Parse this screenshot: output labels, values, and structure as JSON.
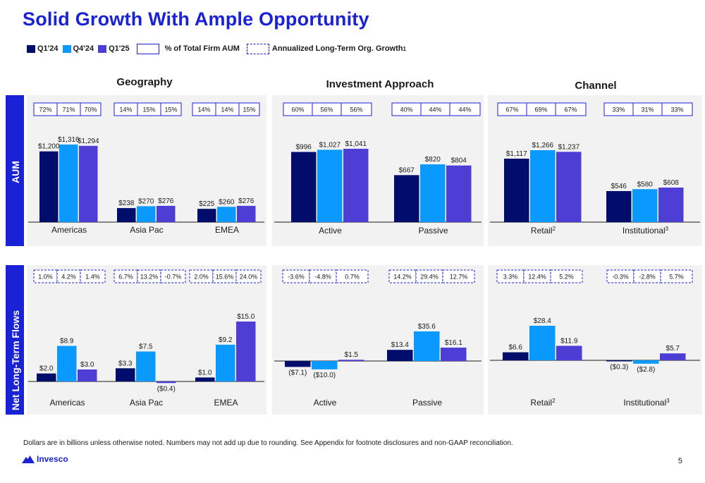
{
  "title": "Solid Growth With Ample Opportunity",
  "legend": {
    "series": [
      {
        "label": "Q1'24",
        "color": "#000d6b"
      },
      {
        "label": "Q4'24",
        "color": "#0a9aff"
      },
      {
        "label": "Q1'25",
        "color": "#4d3fd6"
      }
    ],
    "box_label": "% of Total Firm AUM",
    "dashed_label": "Annualized Long-Term Org. Growth",
    "dashed_sup": "1"
  },
  "column_titles": [
    "Geography",
    "Investment Approach",
    "Channel"
  ],
  "row_labels": [
    "AUM",
    "Net Long-Term Flows"
  ],
  "colors": {
    "q1_24": "#000d6b",
    "q4_24": "#0a9aff",
    "q1_25": "#4d3fd6",
    "accent": "#1a22d6",
    "panel": "#f2f2f2"
  },
  "chart_data": [
    {
      "type": "bar",
      "panel": "AUM - Geography",
      "categories": [
        "Americas",
        "Asia Pac",
        "EMEA"
      ],
      "series": [
        {
          "name": "Q1'24",
          "values": [
            1200,
            238,
            225
          ]
        },
        {
          "name": "Q4'24",
          "values": [
            1316,
            270,
            260
          ]
        },
        {
          "name": "Q1'25",
          "values": [
            1294,
            276,
            276
          ]
        }
      ],
      "data_labels": [
        [
          "$1,200",
          "$1,316",
          "$1,294"
        ],
        [
          "$238",
          "$270",
          "$276"
        ],
        [
          "$225",
          "$260",
          "$276"
        ]
      ],
      "box_values": [
        [
          "72%",
          "71%",
          "70%"
        ],
        [
          "14%",
          "15%",
          "15%"
        ],
        [
          "14%",
          "14%",
          "15%"
        ]
      ],
      "box_style": "solid"
    },
    {
      "type": "bar",
      "panel": "AUM - Investment Approach",
      "categories": [
        "Active",
        "Passive"
      ],
      "series": [
        {
          "name": "Q1'24",
          "values": [
            996,
            667
          ]
        },
        {
          "name": "Q4'24",
          "values": [
            1027,
            820
          ]
        },
        {
          "name": "Q1'25",
          "values": [
            1041,
            804
          ]
        }
      ],
      "data_labels": [
        [
          "$996",
          "$1,027",
          "$1,041"
        ],
        [
          "$667",
          "$820",
          "$804"
        ]
      ],
      "box_values": [
        [
          "60%",
          "56%",
          "56%"
        ],
        [
          "40%",
          "44%",
          "44%"
        ]
      ],
      "box_style": "solid"
    },
    {
      "type": "bar",
      "panel": "AUM - Channel",
      "categories": [
        "Retail",
        "Institutional"
      ],
      "category_sup": [
        "2",
        "3"
      ],
      "series": [
        {
          "name": "Q1'24",
          "values": [
            1117,
            546
          ]
        },
        {
          "name": "Q4'24",
          "values": [
            1266,
            580
          ]
        },
        {
          "name": "Q1'25",
          "values": [
            1237,
            608
          ]
        }
      ],
      "data_labels": [
        [
          "$1,117",
          "$1,266",
          "$1,237"
        ],
        [
          "$546",
          "$580",
          "$608"
        ]
      ],
      "box_values": [
        [
          "67%",
          "69%",
          "67%"
        ],
        [
          "33%",
          "31%",
          "33%"
        ]
      ],
      "box_style": "solid"
    },
    {
      "type": "bar",
      "panel": "Net Long-Term Flows - Geography",
      "categories": [
        "Americas",
        "Asia Pac",
        "EMEA"
      ],
      "series": [
        {
          "name": "Q1'24",
          "values": [
            2.0,
            3.3,
            1.0
          ]
        },
        {
          "name": "Q4'24",
          "values": [
            8.9,
            7.5,
            9.2
          ]
        },
        {
          "name": "Q1'25",
          "values": [
            3.0,
            -0.4,
            15.0
          ]
        }
      ],
      "data_labels": [
        [
          "$2.0",
          "$8.9",
          "$3.0"
        ],
        [
          "$3.3",
          "$7.5",
          "($0.4)"
        ],
        [
          "$1.0",
          "$9.2",
          "$15.0"
        ]
      ],
      "box_values": [
        [
          "1.0%",
          "4.2%",
          "1.4%"
        ],
        [
          "6.7%",
          "13.2%",
          "-0.7%"
        ],
        [
          "2.0%",
          "15.6%",
          "24.0%"
        ]
      ],
      "box_style": "dashed"
    },
    {
      "type": "bar",
      "panel": "Net Long-Term Flows - Investment Approach",
      "categories": [
        "Active",
        "Passive"
      ],
      "series": [
        {
          "name": "Q1'24",
          "values": [
            -7.1,
            13.4
          ]
        },
        {
          "name": "Q4'24",
          "values": [
            -10.0,
            35.6
          ]
        },
        {
          "name": "Q1'25",
          "values": [
            1.5,
            16.1
          ]
        }
      ],
      "data_labels": [
        [
          "($7.1)",
          "($10.0)",
          "$1.5"
        ],
        [
          "$13.4",
          "$35.6",
          "$16.1"
        ]
      ],
      "box_values": [
        [
          "-3.6%",
          "-4.8%",
          "0.7%"
        ],
        [
          "14.2%",
          "29.4%",
          "12.7%"
        ]
      ],
      "box_style": "dashed"
    },
    {
      "type": "bar",
      "panel": "Net Long-Term Flows - Channel",
      "categories": [
        "Retail",
        "Institutional"
      ],
      "category_sup": [
        "2",
        "3"
      ],
      "series": [
        {
          "name": "Q1'24",
          "values": [
            6.6,
            -0.3
          ]
        },
        {
          "name": "Q4'24",
          "values": [
            28.4,
            -2.8
          ]
        },
        {
          "name": "Q1'25",
          "values": [
            11.9,
            5.7
          ]
        }
      ],
      "data_labels": [
        [
          "$6.6",
          "$28.4",
          "$11.9"
        ],
        [
          "($0.3)",
          "($2.8)",
          "$5.7"
        ]
      ],
      "box_values": [
        [
          "3.3%",
          "12.4%",
          "5.2%"
        ],
        [
          "-0.3%",
          "-2.8%",
          "5.7%"
        ]
      ],
      "box_style": "dashed"
    }
  ],
  "footnote": "Dollars are in billions unless otherwise noted. Numbers may not add up due to rounding. See Appendix for footnote disclosures and non-GAAP reconciliation.",
  "logo_text": "Invesco",
  "page_number": "5"
}
